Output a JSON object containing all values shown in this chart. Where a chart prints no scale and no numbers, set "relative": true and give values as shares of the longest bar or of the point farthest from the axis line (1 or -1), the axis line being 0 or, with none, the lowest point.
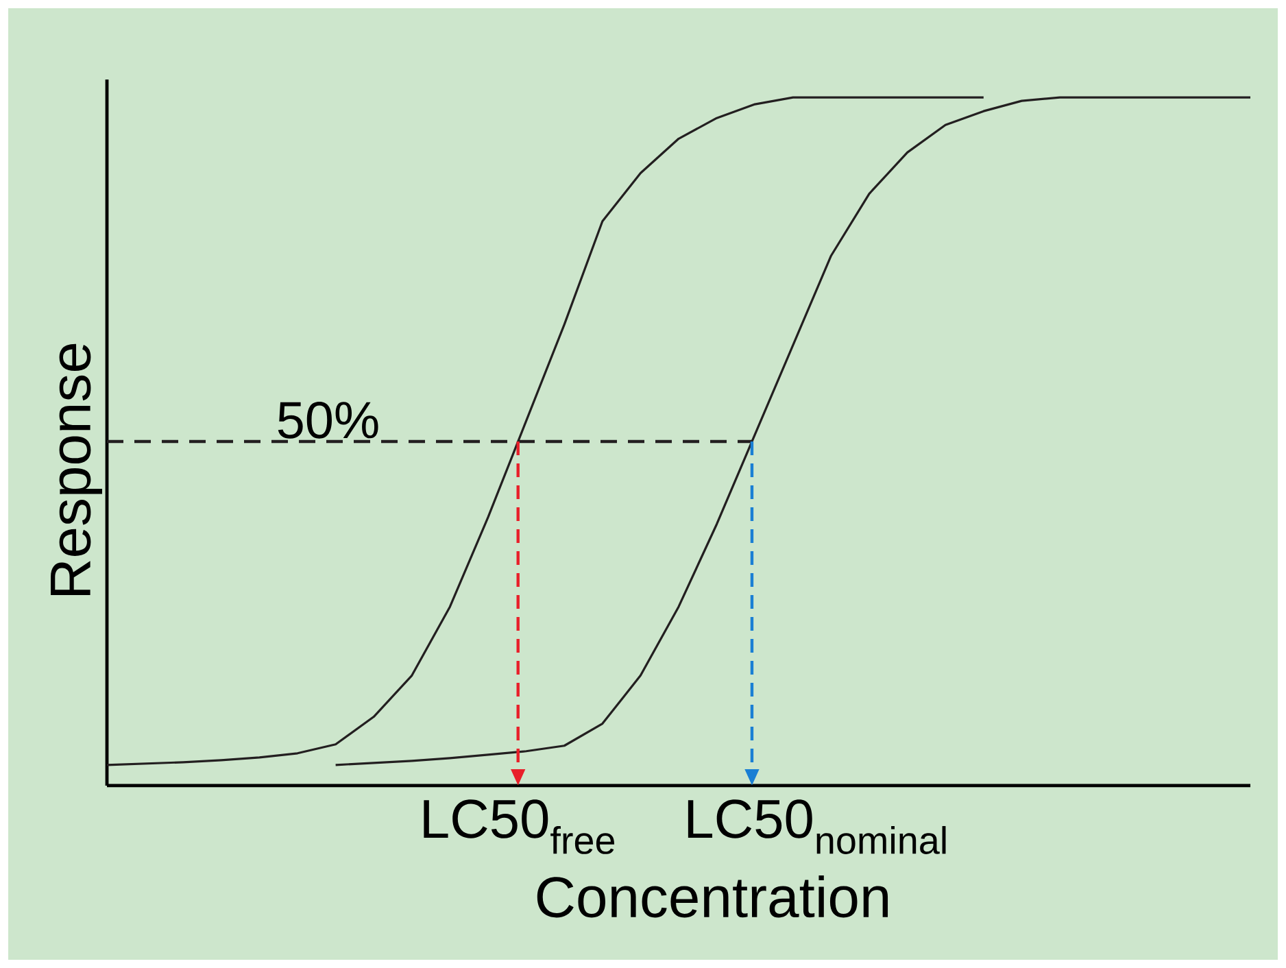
{
  "chart_data": {
    "type": "line",
    "relative": true,
    "xlabel": "Concentration",
    "ylabel": "Response",
    "categories": [
      null,
      null,
      null,
      null,
      null,
      null,
      null,
      null,
      null,
      null,
      null,
      null,
      null,
      null,
      null,
      null,
      null,
      null,
      null,
      null,
      null,
      null,
      null,
      null,
      null,
      null,
      null,
      null,
      null,
      null,
      null
    ],
    "series": [
      {
        "color": "#231f20",
        "values": [
          0.03,
          0.032,
          0.034,
          0.037,
          0.041,
          0.047,
          0.06,
          0.1,
          0.16,
          0.26,
          0.39,
          0.53,
          0.67,
          0.82,
          0.89,
          0.94,
          0.97,
          0.99,
          1.0,
          1.0,
          1.0,
          1.0,
          1.0,
          1.0,
          null,
          null,
          null,
          null,
          null,
          null,
          null
        ]
      },
      {
        "color": "#231f20",
        "values": [
          null,
          null,
          null,
          null,
          null,
          null,
          0.03,
          0.033,
          0.036,
          0.04,
          0.045,
          0.05,
          0.058,
          0.09,
          0.16,
          0.26,
          0.38,
          0.51,
          0.64,
          0.77,
          0.86,
          0.92,
          0.96,
          0.98,
          0.995,
          1.0,
          1.0,
          1.0,
          1.0,
          1.0,
          1.0
        ]
      }
    ],
    "ref_lines": [
      {
        "axis": "y",
        "value": 0.5,
        "label": "50%",
        "color": "#231f20",
        "line_style": "dashed"
      }
    ],
    "annotations": [
      "LC50$_{free}$",
      "LC50$_{nominal}$"
    ],
    "marker": "none",
    "line_style": "solid"
  }
}
